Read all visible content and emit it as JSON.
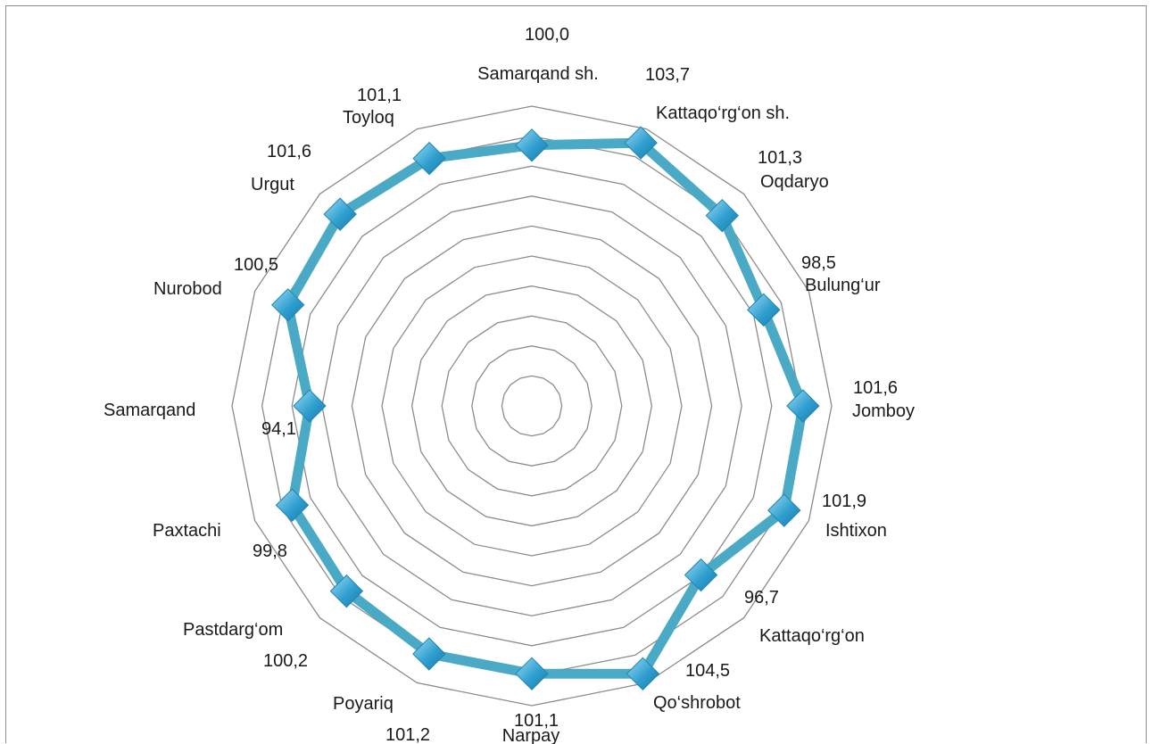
{
  "chart_data": {
    "type": "radar",
    "categories": [
      "Samarqand sh.",
      "Kattaqo‘rg‘on sh.",
      "Oqdaryo",
      "Bulung‘ur",
      "Jomboy",
      "Ishtixon",
      "Kattaqo‘rg‘on",
      "Qo‘shrobot",
      "Narpay",
      "Poyariq",
      "Pastdarg‘om",
      "Paxtachi",
      "Samarqand",
      "Nurobod",
      "Urgut",
      "Toyloq"
    ],
    "series": [
      {
        "values": [
          100.0,
          103.7,
          101.3,
          98.5,
          101.6,
          101.9,
          96.7,
          104.5,
          101.1,
          101.2,
          100.2,
          99.8,
          94.1,
          100.5,
          101.6,
          101.1
        ],
        "color": "#4aaac6",
        "marker": "diamond",
        "marker_color": "#2f9fd0"
      }
    ],
    "data_labels": [
      "100,0",
      "103,7",
      "101,3",
      "98,5",
      "101,6",
      "101,9",
      "96,7",
      "104,5",
      "101,1",
      "101,2",
      "100,2",
      "99,8",
      "94,1",
      "100,5",
      "101,6",
      "101,1"
    ],
    "rlim": [
      60,
      106
    ],
    "grid": true,
    "legend": "none",
    "grid_color": "#8c8c8c"
  }
}
